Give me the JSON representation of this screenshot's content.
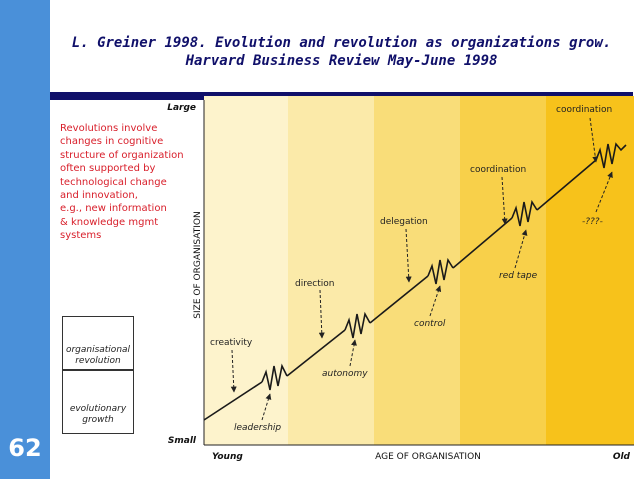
{
  "slide": {
    "number": "62",
    "title_line1": "L. Greiner 1998. Evolution and revolution as organizations grow.",
    "title_line2": "Harvard Business Review May-June 1998"
  },
  "note": {
    "lines": [
      "Revolutions involve",
      "changes in cognitive",
      "structure of organization",
      "often supported by",
      "technological change",
      "and innovation,",
      "e.g., new information",
      "& knowledge mgmt",
      "systems"
    ]
  },
  "legend": {
    "revolution_line1": "organisational",
    "revolution_line2": "revolution",
    "evolution_line1": "evolutionary",
    "evolution_line2": "growth"
  },
  "axes": {
    "y_title": "SIZE OF ORGANISATION",
    "y_top": "Large",
    "y_bottom": "Small",
    "x_title": "AGE OF ORGANISATION",
    "x_left": "Young",
    "x_right": "Old"
  },
  "phases": {
    "evolutions": [
      "creativity",
      "direction",
      "delegation",
      "coordination",
      "coordination"
    ],
    "revolutions": [
      "leadership",
      "autonomy",
      "control",
      "red tape",
      "-???-"
    ]
  },
  "colors": {
    "band": "#4a90d9",
    "title": "#10106a",
    "note": "#d81e2a",
    "bg_light": "#fdf3cc",
    "bg_dark": "#f7c21b"
  }
}
